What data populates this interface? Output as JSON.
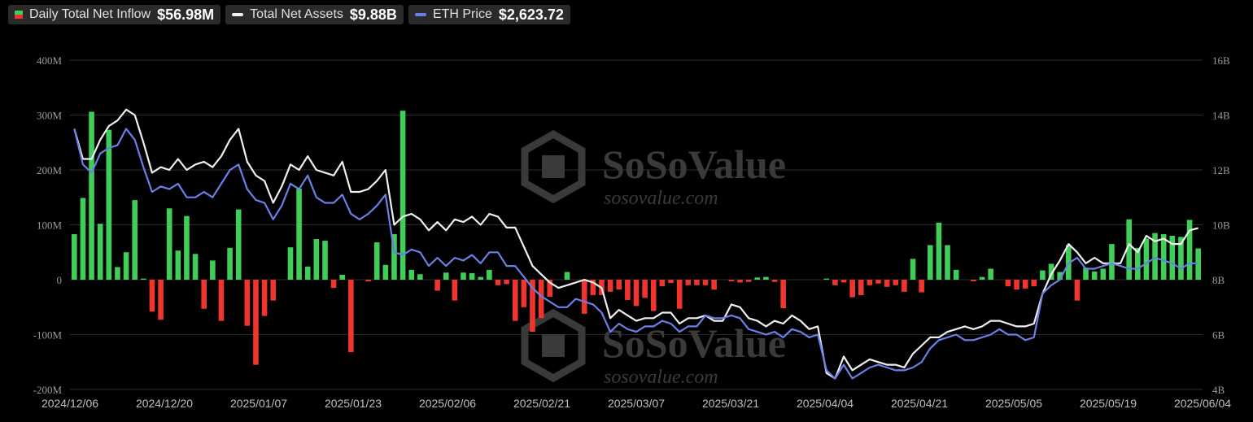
{
  "legend": {
    "inflow": {
      "label": "Daily Total Net Inflow",
      "value": "$56.98M"
    },
    "assets": {
      "label": "Total Net Assets",
      "value": "$9.88B"
    },
    "price": {
      "label": "ETH Price",
      "value": "$2,623.72"
    }
  },
  "watermark": {
    "brand": "SoSoValue",
    "url": "sosovalue.com"
  },
  "colors": {
    "positive": "#3fcf58",
    "negative": "#f0352f",
    "assets_line": "#f0f0f0",
    "price_line": "#6b7fe8",
    "grid": "#2b2b2b",
    "chip_bg": "#2a2a2a"
  },
  "chart_data": {
    "type": "bar",
    "y_left": {
      "range": [
        -200,
        400
      ],
      "ticks": [
        "-200M",
        "-100M",
        "0",
        "100M",
        "200M",
        "300M",
        "400M"
      ]
    },
    "y_right": {
      "range": [
        4,
        16
      ],
      "ticks": [
        "4B",
        "6B",
        "8B",
        "10B",
        "12B",
        "14B",
        "16B"
      ]
    },
    "x_ticks": [
      "2024/12/06",
      "2024/12/20",
      "2025/01/07",
      "2025/01/23",
      "2025/02/06",
      "2025/02/21",
      "2025/03/07",
      "2025/03/21",
      "2025/04/04",
      "2025/04/21",
      "2025/05/05",
      "2025/05/19",
      "2025/06/04"
    ],
    "grid": true,
    "series": [
      {
        "name": "Daily Total Net Inflow",
        "axis": "left",
        "kind": "bar",
        "values": [
          83,
          149,
          306,
          102,
          273,
          23,
          50,
          145,
          2,
          -58,
          -73,
          130,
          53,
          116,
          47,
          -53,
          35,
          -75,
          58,
          128,
          -84,
          -155,
          -66,
          -38,
          0,
          59,
          166,
          24,
          74,
          71,
          -15,
          9,
          -132,
          0,
          -3,
          68,
          27,
          83,
          308,
          18,
          10,
          0,
          -20,
          13,
          -38,
          13,
          12,
          5,
          18,
          -10,
          -8,
          -75,
          -50,
          -95,
          -70,
          -31,
          0,
          14,
          0,
          -62,
          -28,
          -28,
          -22,
          -18,
          -37,
          -48,
          -33,
          -57,
          -12,
          -6,
          -53,
          -10,
          -10,
          -10,
          -18,
          0,
          -3,
          -5,
          -4,
          4,
          5,
          -4,
          -52,
          0,
          0,
          0,
          0,
          2,
          -10,
          -5,
          -32,
          -28,
          -10,
          -7,
          -13,
          -10,
          -22,
          38,
          -23,
          63,
          104,
          63,
          18,
          0,
          -3,
          5,
          20,
          0,
          -12,
          -18,
          -16,
          -12,
          17,
          29,
          14,
          63,
          -38,
          22,
          15,
          20,
          65,
          0,
          110,
          58,
          75,
          85,
          83,
          80,
          78,
          109,
          57
        ]
      },
      {
        "name": "Total Net Assets",
        "axis": "right",
        "kind": "line",
        "values": [
          13.5,
          12.4,
          12.4,
          13.1,
          13.6,
          13.8,
          14.2,
          14.0,
          13.0,
          11.9,
          12.1,
          12.0,
          12.4,
          12.0,
          12.2,
          12.3,
          12.1,
          12.5,
          13.1,
          13.5,
          12.3,
          11.8,
          11.6,
          10.8,
          11.4,
          12.2,
          12.0,
          12.5,
          12.0,
          11.9,
          11.8,
          12.3,
          11.2,
          11.2,
          11.3,
          11.6,
          12.0,
          10.0,
          10.3,
          10.4,
          10.2,
          9.8,
          10.1,
          9.8,
          10.2,
          10.1,
          10.3,
          10.0,
          10.4,
          10.3,
          9.9,
          9.9,
          9.2,
          8.5,
          8.2,
          7.9,
          7.7,
          7.8,
          7.9,
          8.0,
          7.9,
          7.7,
          6.6,
          6.9,
          6.7,
          6.5,
          6.6,
          6.6,
          6.8,
          6.8,
          6.4,
          6.6,
          6.6,
          6.7,
          6.5,
          6.5,
          7.1,
          7.0,
          6.6,
          6.5,
          6.3,
          6.5,
          6.4,
          6.7,
          6.5,
          6.2,
          6.3,
          4.6,
          4.4,
          5.2,
          4.7,
          4.9,
          5.1,
          5.0,
          4.9,
          4.9,
          4.8,
          5.3,
          5.6,
          5.9,
          5.9,
          6.1,
          6.2,
          6.3,
          6.2,
          6.3,
          6.5,
          6.5,
          6.4,
          6.3,
          6.3,
          6.4,
          7.5,
          8.2,
          8.7,
          9.3,
          9.0,
          8.6,
          8.8,
          8.6,
          8.6,
          8.6,
          9.3,
          9.0,
          9.6,
          9.4,
          9.5,
          9.3,
          9.3,
          9.8,
          9.88
        ]
      },
      {
        "name": "ETH Price",
        "axis": "right",
        "kind": "line",
        "values": [
          13.5,
          12.2,
          11.9,
          12.6,
          12.8,
          12.9,
          13.5,
          13.1,
          12.1,
          11.2,
          11.4,
          11.3,
          11.5,
          11.0,
          11.0,
          11.2,
          11.0,
          11.5,
          12.0,
          12.2,
          11.3,
          10.9,
          10.8,
          10.2,
          10.7,
          11.5,
          11.3,
          11.8,
          11.0,
          10.8,
          10.8,
          11.1,
          10.4,
          10.2,
          10.4,
          10.7,
          11.1,
          9.0,
          8.9,
          9.1,
          9.0,
          8.5,
          8.8,
          8.5,
          8.8,
          8.7,
          8.9,
          8.6,
          9.0,
          9.0,
          8.5,
          8.5,
          8.1,
          7.7,
          7.4,
          7.2,
          7.0,
          7.0,
          7.3,
          7.2,
          7.1,
          6.8,
          6.1,
          6.4,
          6.2,
          6.1,
          6.3,
          6.3,
          6.5,
          6.4,
          6.1,
          6.3,
          6.3,
          6.7,
          6.6,
          6.6,
          6.7,
          6.6,
          6.2,
          6.1,
          6.0,
          6.1,
          5.9,
          6.2,
          6.1,
          5.9,
          6.0,
          4.7,
          4.4,
          4.9,
          4.4,
          4.6,
          4.8,
          4.9,
          4.8,
          4.7,
          4.7,
          4.8,
          5.0,
          5.5,
          5.8,
          5.9,
          6.0,
          5.8,
          5.8,
          5.9,
          6.0,
          6.2,
          6.0,
          6.0,
          5.8,
          5.9,
          7.5,
          7.8,
          8.0,
          8.6,
          8.8,
          8.4,
          8.4,
          8.5,
          8.6,
          8.5,
          8.4,
          8.4,
          8.6,
          8.8,
          8.7,
          8.6,
          8.4,
          8.6,
          8.6
        ]
      }
    ]
  }
}
